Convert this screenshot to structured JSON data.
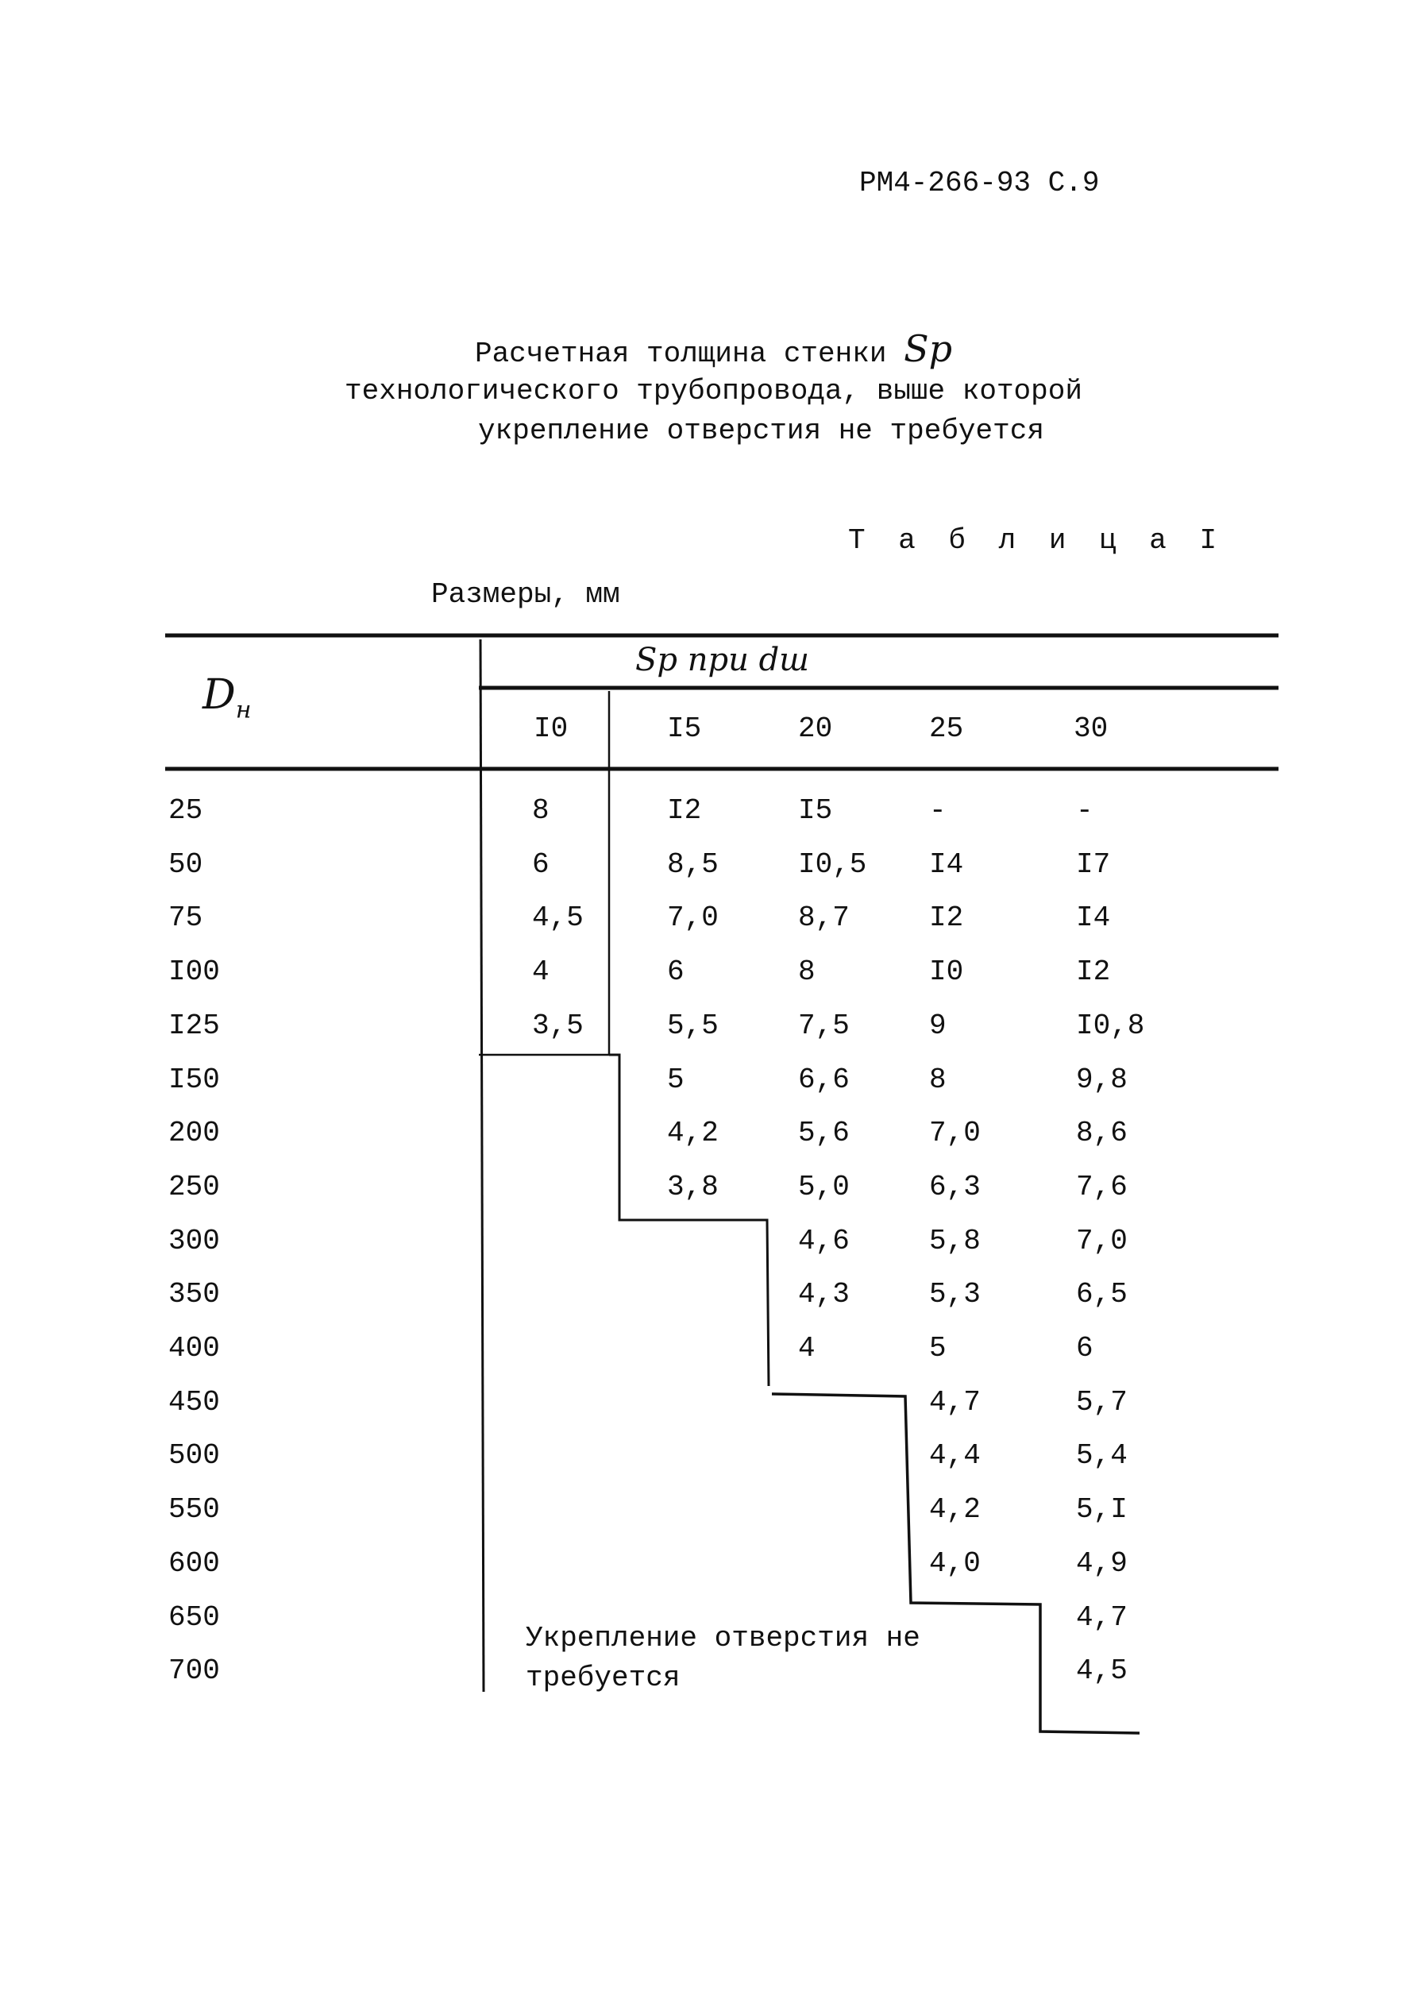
{
  "header": {
    "doc_code": "РМ4-266-93 С.9"
  },
  "title": {
    "line1": "Расчетная толщина стенки",
    "line1_symbol": "Sp",
    "line2": "технологического трубопровода, выше которой",
    "line3": "укрепление отверстия не требуется"
  },
  "table_label": "Т а б л и ц а  I",
  "units": "Размеры, мм",
  "table": {
    "row_header": "D",
    "row_header_sub": "н",
    "group_header": "Sp при dш",
    "columns": [
      "I0",
      "I5",
      "20",
      "25",
      "30"
    ],
    "rows": [
      {
        "d": "25",
        "values": [
          "8",
          "I2",
          "I5",
          "-",
          "-"
        ]
      },
      {
        "d": "50",
        "values": [
          "6",
          "8,5",
          "I0,5",
          "I4",
          "I7"
        ]
      },
      {
        "d": "75",
        "values": [
          "4,5",
          "7,0",
          "8,7",
          "I2",
          "I4"
        ]
      },
      {
        "d": "I00",
        "values": [
          "4",
          "6",
          "8",
          "I0",
          "I2"
        ]
      },
      {
        "d": "I25",
        "values": [
          "3,5",
          "5,5",
          "7,5",
          "9",
          "I0,8"
        ]
      },
      {
        "d": "I50",
        "values": [
          "",
          "5",
          "6,6",
          "8",
          "9,8"
        ]
      },
      {
        "d": "200",
        "values": [
          "",
          "4,2",
          "5,6",
          "7,0",
          "8,6"
        ]
      },
      {
        "d": "250",
        "values": [
          "",
          "3,8",
          "5,0",
          "6,3",
          "7,6"
        ]
      },
      {
        "d": "300",
        "values": [
          "",
          "",
          "4,6",
          "5,8",
          "7,0"
        ]
      },
      {
        "d": "350",
        "values": [
          "",
          "",
          "4,3",
          "5,3",
          "6,5"
        ]
      },
      {
        "d": "400",
        "values": [
          "",
          "",
          "4",
          "5",
          "6"
        ]
      },
      {
        "d": "450",
        "values": [
          "",
          "",
          "",
          "4,7",
          "5,7"
        ]
      },
      {
        "d": "500",
        "values": [
          "",
          "",
          "",
          "4,4",
          "5,4"
        ]
      },
      {
        "d": "550",
        "values": [
          "",
          "",
          "",
          "4,2",
          "5,I"
        ]
      },
      {
        "d": "600",
        "values": [
          "",
          "",
          "",
          "4,0",
          "4,9"
        ]
      },
      {
        "d": "650",
        "values": [
          "",
          "",
          "",
          "",
          "4,7"
        ]
      },
      {
        "d": "700",
        "values": [
          "",
          "",
          "",
          "",
          "4,5"
        ]
      }
    ],
    "note_line1": "Укрепление отверстия не",
    "note_line2": "требуется"
  }
}
